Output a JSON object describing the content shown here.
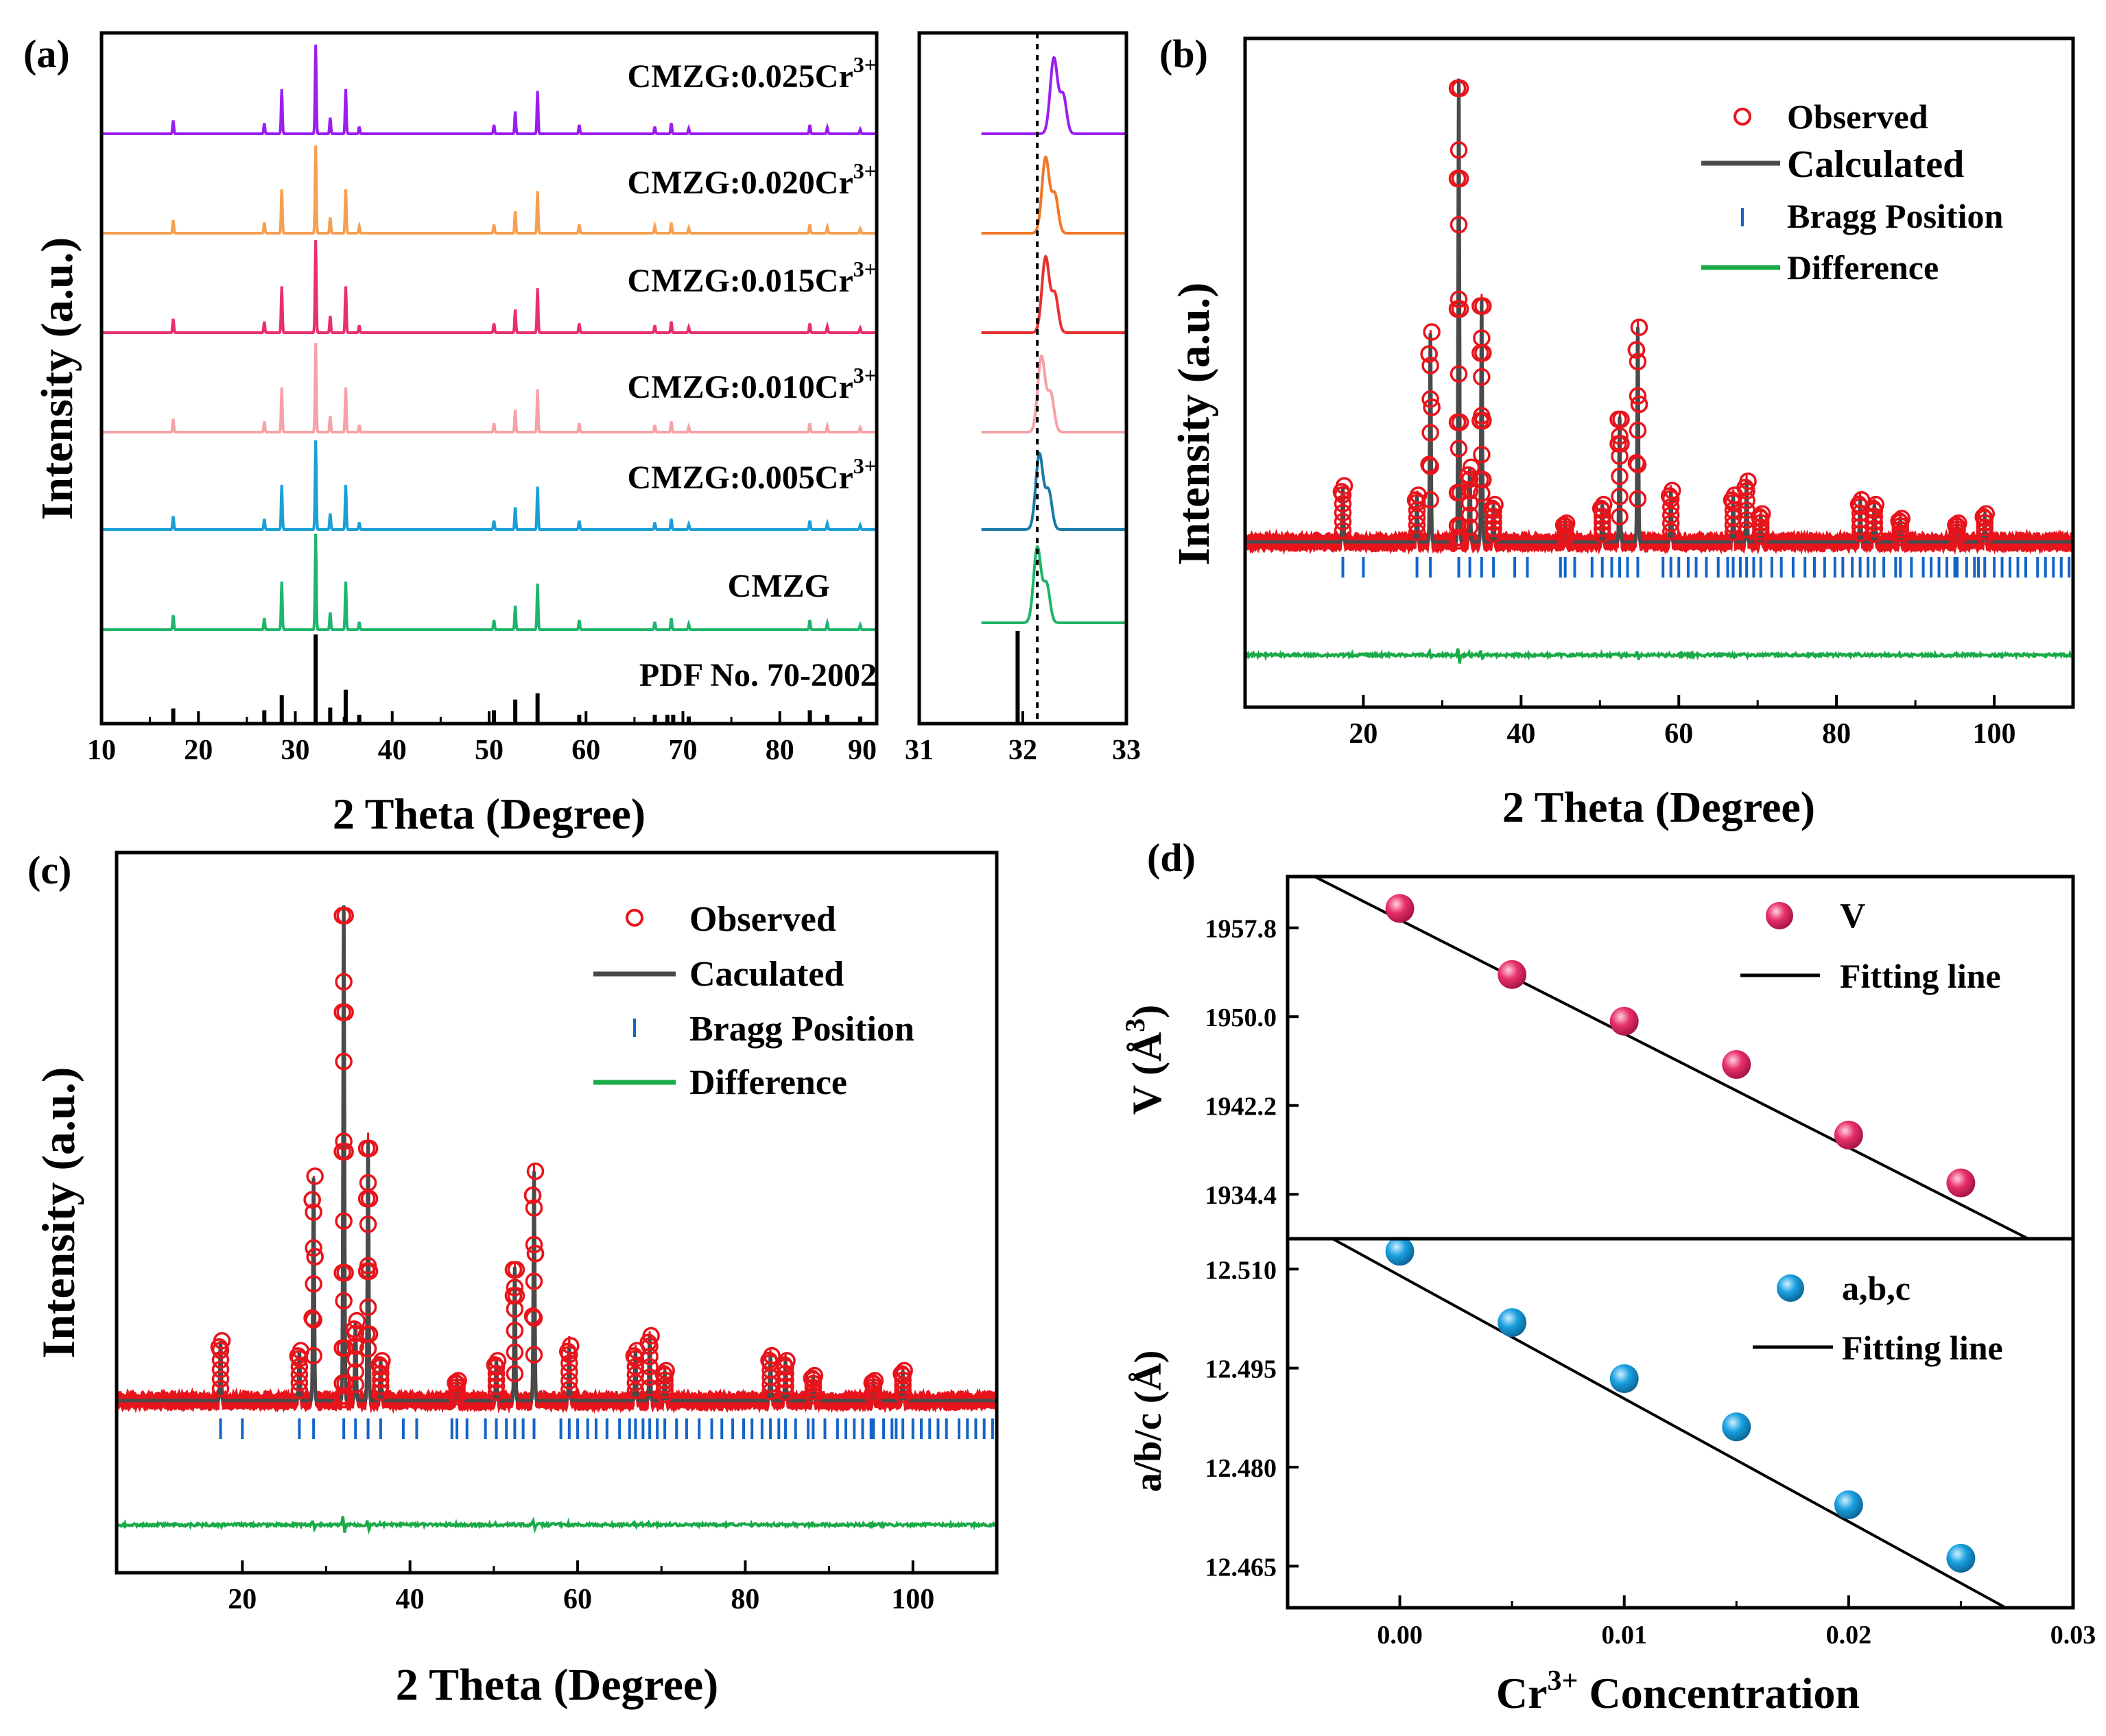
{
  "colors": {
    "purple": "#9b1ef0",
    "orange": "#f5a052",
    "pink": "#e8306a",
    "lightpink": "#f5a2a8",
    "blue": "#1a9fd6",
    "green": "#1fb56b",
    "black": "#000000",
    "observed": "#e8141c",
    "calculated": "#4a4a4a",
    "bragg": "#1464c8",
    "difference": "#1aab48",
    "v_marker": "#e0306a",
    "abc_marker": "#1aa0e0",
    "inset_orange": "#f07828",
    "inset_red": "#e83030",
    "inset_teal": "#1a7aa8"
  },
  "chart_data": [
    {
      "panel": "(a)",
      "type": "line",
      "xlabel": "2 Theta (Degree)",
      "ylabel": "Intensity (a.u.)",
      "xlim": [
        10,
        90
      ],
      "xticks": [
        "10",
        "20",
        "30",
        "40",
        "50",
        "60",
        "70",
        "80",
        "90"
      ],
      "series": [
        {
          "name": "CMZG:0.025Cr3+",
          "label": "CMZG:0.025Cr",
          "sup": "3+",
          "color": "purple"
        },
        {
          "name": "CMZG:0.020Cr3+",
          "label": "CMZG:0.020Cr",
          "sup": "3+",
          "color": "orange"
        },
        {
          "name": "CMZG:0.015Cr3+",
          "label": "CMZG:0.015Cr",
          "sup": "3+",
          "color": "pink"
        },
        {
          "name": "CMZG:0.010Cr3+",
          "label": "CMZG:0.010Cr",
          "sup": "3+",
          "color": "lightpink"
        },
        {
          "name": "CMZG:0.005Cr3+",
          "label": "CMZG:0.005Cr",
          "sup": "3+",
          "color": "blue"
        },
        {
          "name": "CMZG",
          "label": "CMZG",
          "sup": "",
          "color": "green"
        }
      ],
      "peaks": [
        [
          17.4,
          0.15
        ],
        [
          26.8,
          0.12
        ],
        [
          28.6,
          0.5
        ],
        [
          32.1,
          1.0
        ],
        [
          33.6,
          0.18
        ],
        [
          35.2,
          0.5
        ],
        [
          36.6,
          0.08
        ],
        [
          50.5,
          0.1
        ],
        [
          52.7,
          0.25
        ],
        [
          55.0,
          0.48
        ],
        [
          59.3,
          0.1
        ],
        [
          67.1,
          0.08
        ],
        [
          68.8,
          0.12
        ],
        [
          70.6,
          0.06
        ],
        [
          83.1,
          0.1
        ],
        [
          84.9,
          0.07
        ],
        [
          88.3,
          0.05
        ]
      ],
      "reference": {
        "name": "PDF No. 70-2002",
        "sticks": [
          [
            17.4,
            0.17
          ],
          [
            26.8,
            0.15
          ],
          [
            28.6,
            0.32
          ],
          [
            32.1,
            1.0
          ],
          [
            33.6,
            0.18
          ],
          [
            35.2,
            0.38
          ],
          [
            36.6,
            0.1
          ],
          [
            50.5,
            0.15
          ],
          [
            52.7,
            0.27
          ],
          [
            55.0,
            0.34
          ],
          [
            59.3,
            0.1
          ],
          [
            67.1,
            0.1
          ],
          [
            68.4,
            0.1
          ],
          [
            69.0,
            0.1
          ],
          [
            70.6,
            0.08
          ],
          [
            83.1,
            0.15
          ],
          [
            84.9,
            0.1
          ],
          [
            88.3,
            0.08
          ]
        ]
      }
    },
    {
      "panel": "(a) inset",
      "type": "line",
      "xlim": [
        31,
        33
      ],
      "xticks": [
        "31",
        "32",
        "33"
      ],
      "reference_line_x": 32.14,
      "peak_centers": [
        32.3,
        32.22,
        32.22,
        32.18,
        32.16,
        32.14
      ],
      "inset_colors": [
        "purple",
        "inset_orange",
        "inset_red",
        "lightpink",
        "inset_teal",
        "green"
      ],
      "reference_stick_x": 31.95
    },
    {
      "panel": "(b)",
      "type": "scatter",
      "xlabel": "2 Theta (Degree)",
      "ylabel": "Intensity (a.u.)",
      "xlim": [
        5,
        110
      ],
      "xticks": [
        "20",
        "40",
        "60",
        "80",
        "100"
      ],
      "legend": {
        "observed": "Observed",
        "calculated": "Calculated",
        "bragg": "Bragg Position",
        "difference": "Difference"
      },
      "peaks": [
        [
          17.4,
          0.12
        ],
        [
          26.8,
          0.1
        ],
        [
          28.5,
          0.45
        ],
        [
          32.1,
          1.0
        ],
        [
          33.5,
          0.16
        ],
        [
          35.0,
          0.52
        ],
        [
          36.5,
          0.08
        ],
        [
          45.6,
          0.04
        ],
        [
          50.3,
          0.08
        ],
        [
          52.5,
          0.27
        ],
        [
          54.8,
          0.46
        ],
        [
          59.0,
          0.11
        ],
        [
          66.9,
          0.1
        ],
        [
          68.6,
          0.13
        ],
        [
          70.4,
          0.06
        ],
        [
          83.0,
          0.09
        ],
        [
          84.8,
          0.08
        ],
        [
          88.1,
          0.05
        ],
        [
          95.3,
          0.04
        ],
        [
          98.8,
          0.06
        ]
      ],
      "bragg_positions": [
        17.4,
        20.0,
        26.8,
        28.5,
        32.1,
        33.5,
        35.0,
        36.5,
        39.2,
        40.8,
        45.0,
        45.6,
        46.8,
        49.0,
        50.3,
        51.5,
        52.5,
        53.5,
        54.8,
        58.0,
        59.0,
        60.0,
        61.2,
        62.2,
        63.5,
        65.0,
        66.2,
        66.9,
        67.8,
        68.6,
        69.5,
        70.4,
        71.8,
        73.0,
        74.5,
        76.0,
        77.2,
        78.5,
        79.8,
        80.8,
        82.0,
        83.0,
        84.0,
        84.8,
        86.0,
        87.5,
        88.1,
        89.5,
        91.0,
        92.0,
        93.0,
        94.0,
        95.0,
        95.3,
        96.5,
        97.5,
        98.0,
        98.8,
        100.0,
        101.0,
        102.0,
        103.0,
        104.0,
        105.5,
        106.5,
        107.5,
        108.5,
        109.5
      ]
    },
    {
      "panel": "(c)",
      "type": "scatter",
      "xlabel": "2 Theta (Degree)",
      "ylabel": "Intensity (a.u.)",
      "xlim": [
        5,
        110
      ],
      "xticks": [
        "20",
        "40",
        "60",
        "80",
        "100"
      ],
      "legend": {
        "observed": "Observed",
        "calculated": "Caculated",
        "bragg": "Bragg Position",
        "difference": "Difference"
      },
      "peaks": [
        [
          17.4,
          0.12
        ],
        [
          26.8,
          0.1
        ],
        [
          28.5,
          0.45
        ],
        [
          32.1,
          1.0
        ],
        [
          33.5,
          0.16
        ],
        [
          35.0,
          0.52
        ],
        [
          36.5,
          0.08
        ],
        [
          45.6,
          0.04
        ],
        [
          50.3,
          0.08
        ],
        [
          52.5,
          0.27
        ],
        [
          54.8,
          0.46
        ],
        [
          59.0,
          0.11
        ],
        [
          66.9,
          0.1
        ],
        [
          68.6,
          0.13
        ],
        [
          70.4,
          0.06
        ],
        [
          83.0,
          0.09
        ],
        [
          84.8,
          0.08
        ],
        [
          88.1,
          0.05
        ],
        [
          95.3,
          0.04
        ],
        [
          98.8,
          0.06
        ]
      ],
      "bragg_positions": [
        17.4,
        20.0,
        26.8,
        28.5,
        32.1,
        33.5,
        35.0,
        36.5,
        39.2,
        40.8,
        45.0,
        45.6,
        46.8,
        49.0,
        50.3,
        51.5,
        52.5,
        53.5,
        54.8,
        58.0,
        59.0,
        60.0,
        61.2,
        62.2,
        63.5,
        65.0,
        66.2,
        66.9,
        67.8,
        68.6,
        69.5,
        70.4,
        71.8,
        73.0,
        74.5,
        76.0,
        77.2,
        78.5,
        79.8,
        80.8,
        82.0,
        83.0,
        84.0,
        84.8,
        86.0,
        87.5,
        88.1,
        89.5,
        91.0,
        92.0,
        93.0,
        94.0,
        95.0,
        95.3,
        96.5,
        97.5,
        98.0,
        98.8,
        100.0,
        101.0,
        102.0,
        103.0,
        104.0,
        105.5,
        106.5,
        107.5,
        108.5,
        109.5
      ]
    },
    {
      "panel": "(d) top",
      "type": "scatter",
      "ylabel": "V (Å",
      "ylabel_sup": "3",
      "ylim": [
        1930.5,
        1962.3
      ],
      "xlim": [
        -0.005,
        0.03
      ],
      "yticks": [
        1957.8,
        1950.0,
        1942.2,
        1934.4
      ],
      "ytick_labels": [
        "1957.8",
        "1950.0",
        "1942.2",
        "1934.4"
      ],
      "series": [
        {
          "name": "V",
          "x": [
            0.0,
            0.005,
            0.01,
            0.015,
            0.02,
            0.025
          ],
          "y": [
            1959.5,
            1953.7,
            1949.6,
            1945.8,
            1939.6,
            1935.4
          ]
        }
      ],
      "fit": {
        "name": "Fitting line",
        "x": [
          -0.0045,
          0.0285
        ],
        "y": [
          1963.0,
          1930.0
        ]
      }
    },
    {
      "panel": "(d) bottom",
      "type": "scatter",
      "xlabel": "Cr",
      "xlabel_sup": "3+",
      "xlabel_tail": " Concentration",
      "ylabel": "a/b/c (Å)",
      "ylim": [
        12.4587,
        12.5146
      ],
      "xlim": [
        -0.005,
        0.03
      ],
      "xticks": [
        0.0,
        0.01,
        0.02,
        0.03
      ],
      "xtick_labels": [
        "0.00",
        "0.01",
        "0.02",
        "0.03"
      ],
      "yticks": [
        12.51,
        12.495,
        12.48,
        12.465
      ],
      "ytick_labels": [
        "12.510",
        "12.495",
        "12.480",
        "12.465"
      ],
      "series": [
        {
          "name": "a,b,c",
          "x": [
            0.0,
            0.005,
            0.01,
            0.015,
            0.02,
            0.025
          ],
          "y": [
            12.5127,
            12.5019,
            12.4934,
            12.4861,
            12.4743,
            12.4662
          ]
        }
      ],
      "fit": {
        "name": "Fitting line",
        "x": [
          -0.003,
          0.027
        ],
        "y": [
          12.5146,
          12.4587
        ]
      }
    }
  ]
}
